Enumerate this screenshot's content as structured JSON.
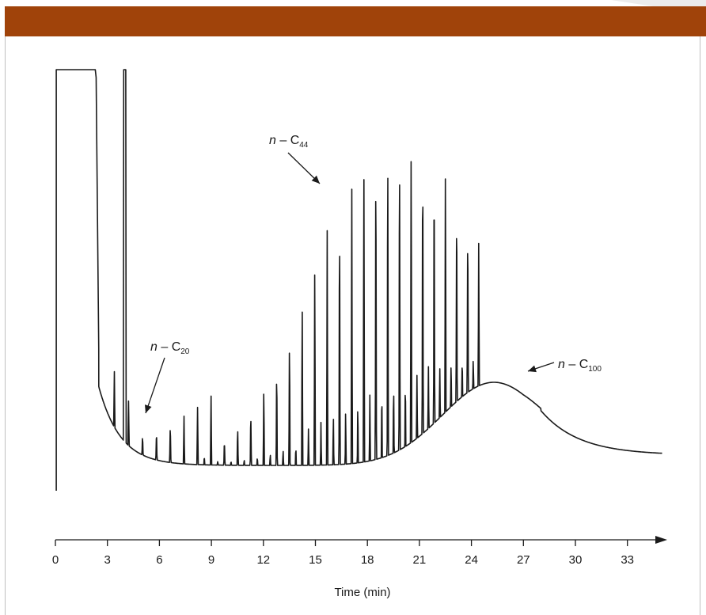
{
  "header": {
    "color": "#a0430a"
  },
  "chart_data": {
    "type": "line",
    "title": "",
    "xlabel": "Time (min)",
    "ylabel": "",
    "xlim": [
      0,
      35
    ],
    "x_ticks": [
      0,
      3,
      6,
      9,
      12,
      15,
      18,
      21,
      24,
      27,
      30,
      33
    ],
    "grid": false,
    "line_color": "#1a1a1a",
    "detector_saturation_top": true,
    "annotations": [
      {
        "prefix": "n",
        "dash": " – ",
        "element": "C",
        "subscript": "20",
        "target_time": 5.2
      },
      {
        "prefix": "n",
        "dash": " – ",
        "element": "C",
        "subscript": "44",
        "target_time": 15.3
      },
      {
        "prefix": "n",
        "dash": " – ",
        "element": "C",
        "subscript": "100",
        "target_time": 27.0
      }
    ]
  }
}
